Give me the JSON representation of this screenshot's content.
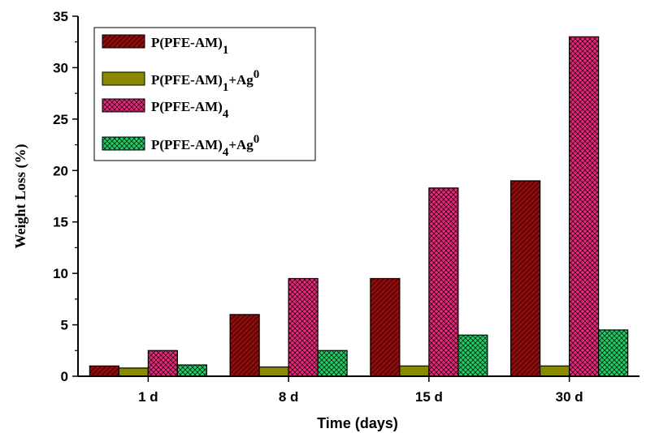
{
  "chart_data": {
    "type": "bar",
    "categories": [
      "1 d",
      "8 d",
      "15 d",
      "30 d"
    ],
    "xlabel": "Time (days)",
    "ylabel": "Weight Loss (%)",
    "ylim": [
      0,
      35
    ],
    "yticks": [
      0,
      5,
      10,
      15,
      20,
      25,
      30,
      35
    ],
    "legend_position": "top-left",
    "series": [
      {
        "name": "P(PFE-AM)1",
        "legend_main": "P(PFE-AM)",
        "legend_sub": "1",
        "legend_tail": "",
        "legend_sup": "",
        "values": [
          1.0,
          6.0,
          9.5,
          19.0
        ],
        "color": "#8b0d0d"
      },
      {
        "name": "P(PFE-AM)1+Ag0",
        "legend_main": "P(PFE-AM)",
        "legend_sub": "1",
        "legend_tail": "+Ag",
        "legend_sup": "0",
        "values": [
          0.8,
          0.9,
          1.0,
          1.0
        ],
        "color": "#8a8a00"
      },
      {
        "name": "P(PFE-AM)4",
        "legend_main": "P(PFE-AM)",
        "legend_sub": "4",
        "legend_tail": "",
        "legend_sup": "",
        "values": [
          2.5,
          9.5,
          18.3,
          33.0
        ],
        "color": "#e8287a"
      },
      {
        "name": "P(PFE-AM)4+Ag0",
        "legend_main": "P(PFE-AM)",
        "legend_sub": "4",
        "legend_tail": "+Ag",
        "legend_sup": "0",
        "values": [
          1.1,
          2.5,
          4.0,
          4.5
        ],
        "color": "#22cc66"
      }
    ]
  }
}
